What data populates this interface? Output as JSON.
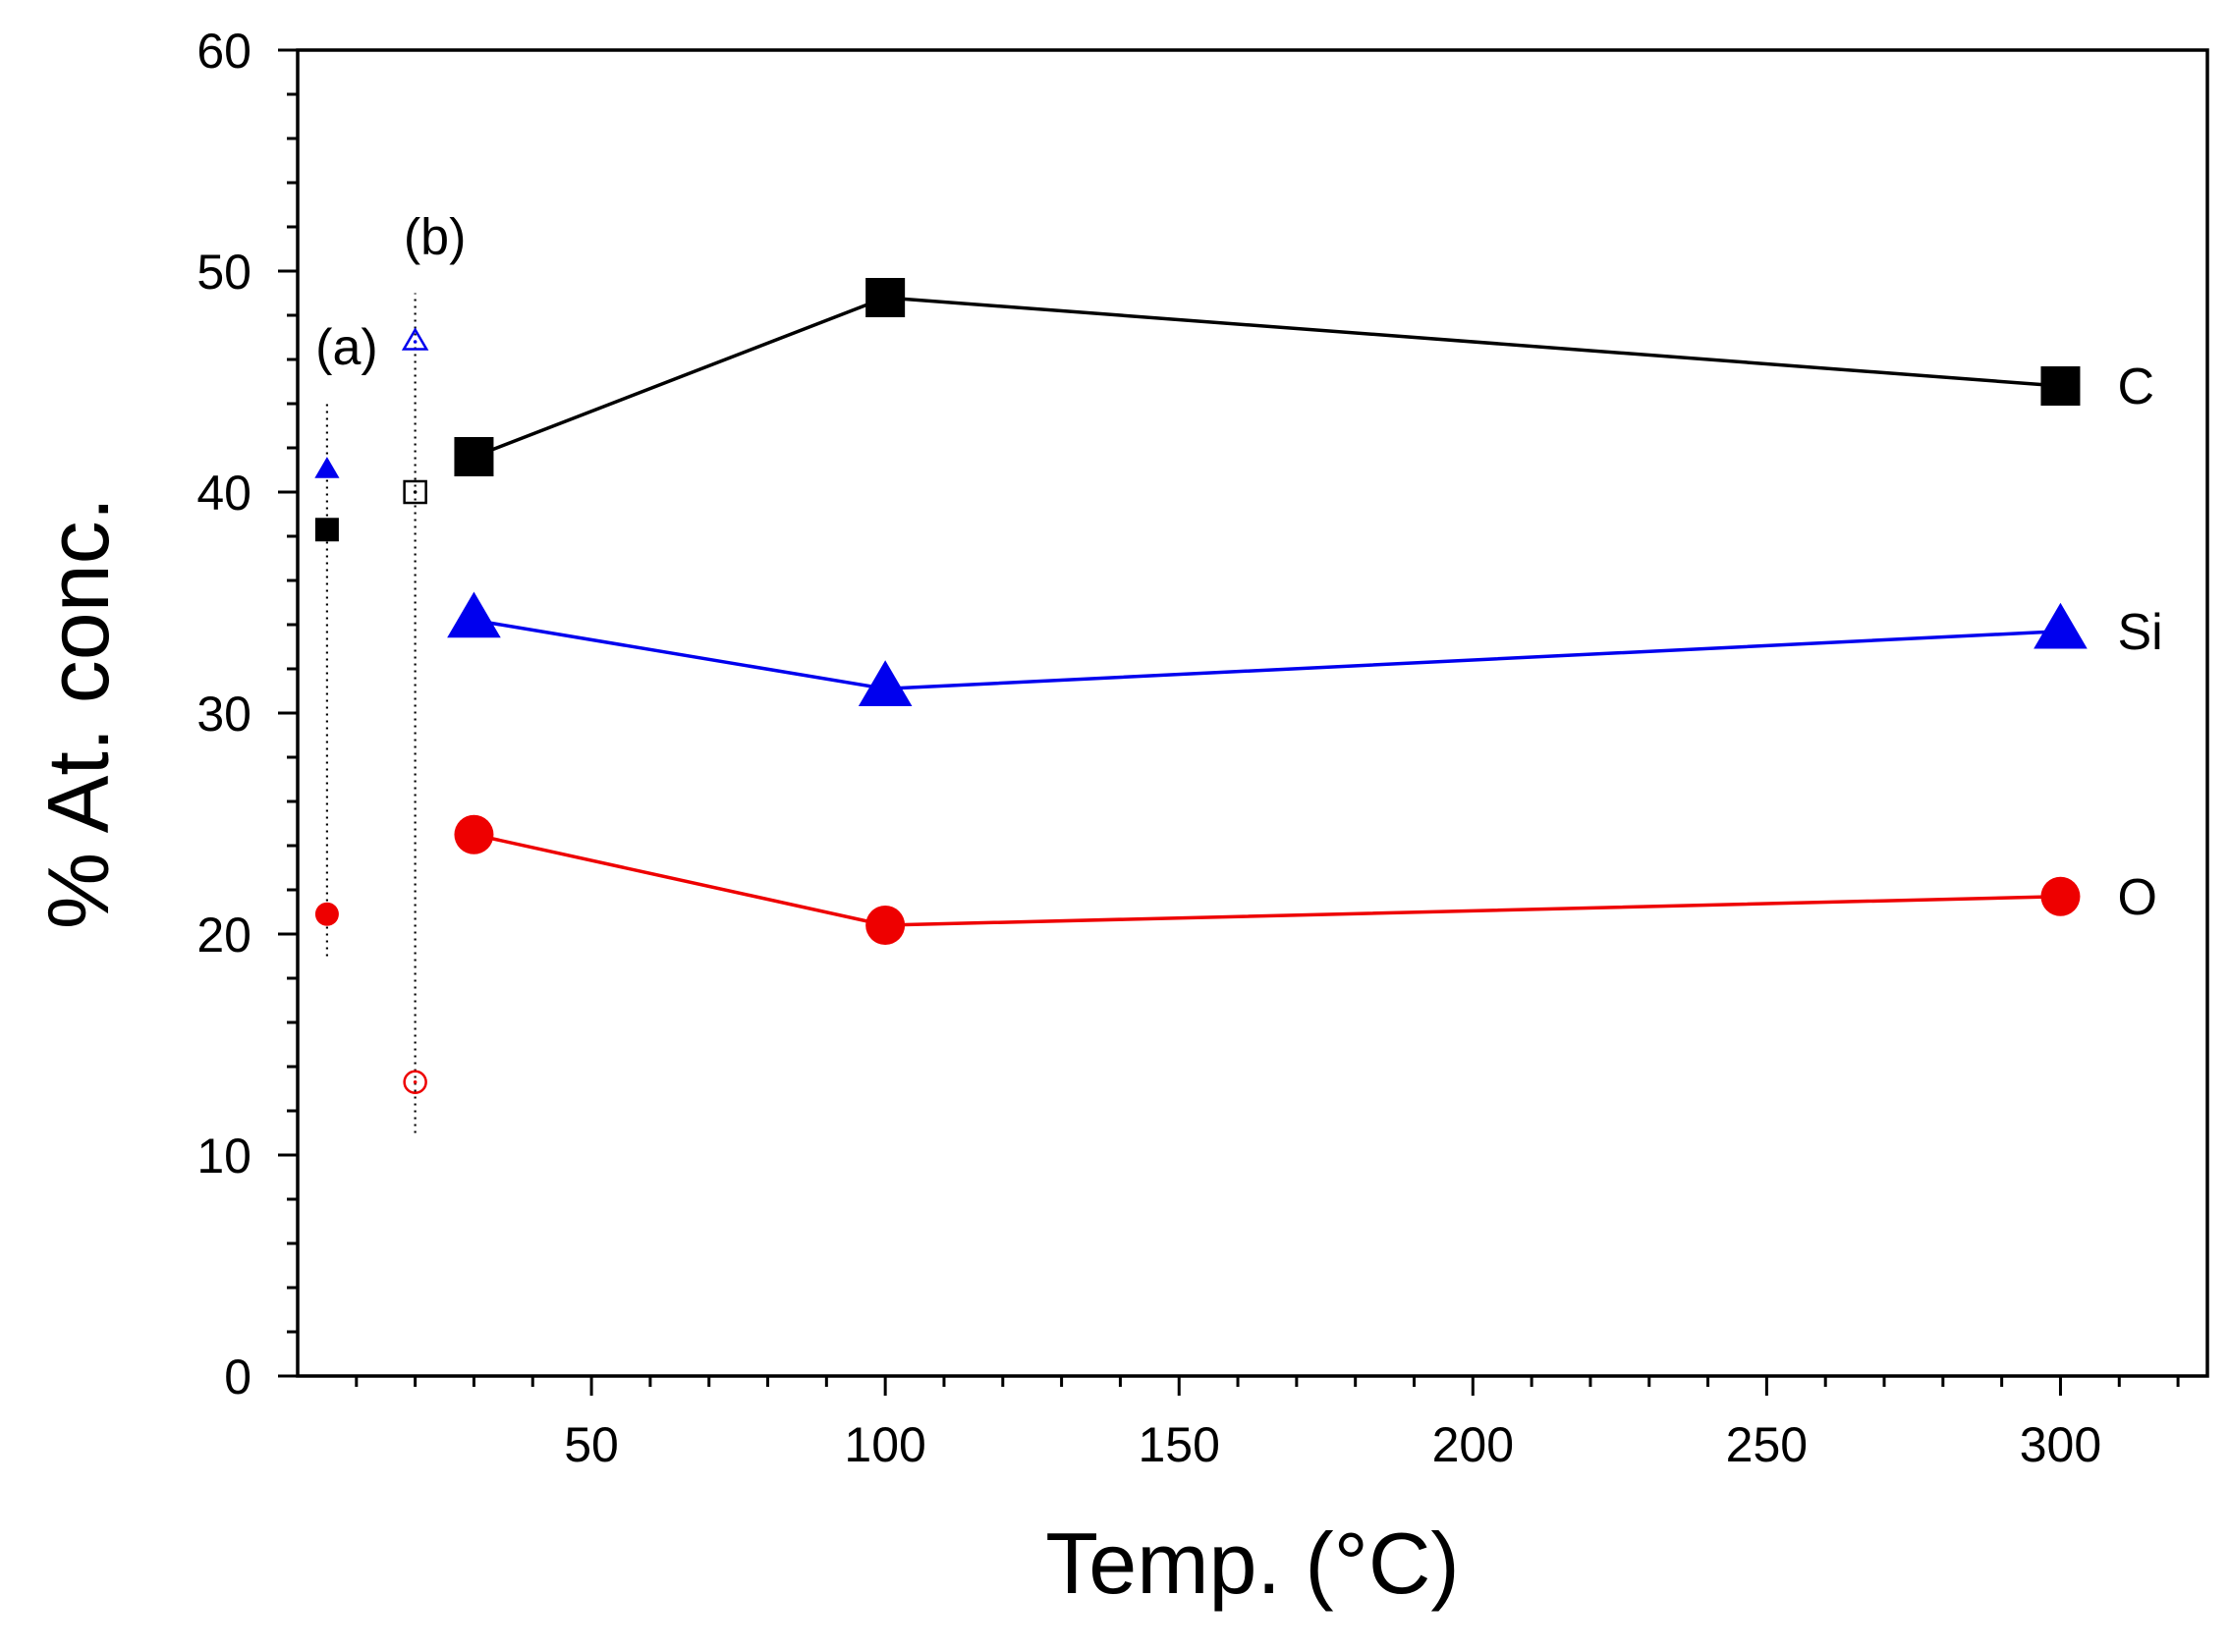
{
  "chart_data": {
    "type": "scatter",
    "title": "",
    "xlabel": "Temp. (°C)",
    "ylabel": "% At. conc.",
    "xlim": [
      0,
      325
    ],
    "ylim": [
      0,
      60
    ],
    "xticks": [
      50,
      100,
      150,
      200,
      250,
      300
    ],
    "yticks": [
      0,
      10,
      20,
      30,
      40,
      50,
      60
    ],
    "grid": false,
    "legend": "none",
    "series": [
      {
        "name": "C",
        "marker": "square",
        "color": "#000000",
        "x": [
          30,
          100,
          300
        ],
        "values": [
          41.6,
          48.8,
          44.8
        ]
      },
      {
        "name": "Si",
        "marker": "triangle",
        "color": "#0000ee",
        "x": [
          30,
          100,
          300
        ],
        "values": [
          34.2,
          31.1,
          33.7
        ]
      },
      {
        "name": "O",
        "marker": "circle",
        "color": "#ee0000",
        "x": [
          30,
          100,
          300
        ],
        "values": [
          24.5,
          20.4,
          21.7
        ]
      }
    ],
    "reference_points": [
      {
        "label": "(a)",
        "x": 5,
        "fill": "solid",
        "line_range": [
          19,
          44
        ],
        "points": [
          {
            "element": "C",
            "value": 38.3
          },
          {
            "element": "Si",
            "value": 41.0
          },
          {
            "element": "O",
            "value": 20.9
          }
        ]
      },
      {
        "label": "(b)",
        "x": 20,
        "fill": "open",
        "line_range": [
          11,
          49
        ],
        "points": [
          {
            "element": "C",
            "value": 40.0
          },
          {
            "element": "Si",
            "value": 46.8
          },
          {
            "element": "O",
            "value": 13.3
          }
        ]
      }
    ]
  }
}
